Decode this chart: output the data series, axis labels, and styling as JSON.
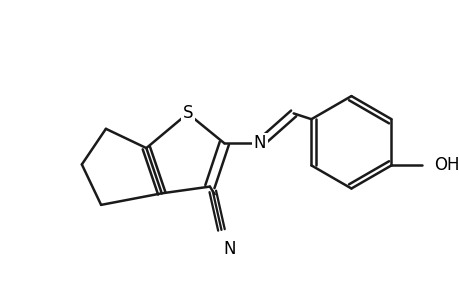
{
  "bg_color": "#ffffff",
  "bond_color": "#1a1a1a",
  "bond_width": 1.8,
  "text_color": "#000000",
  "font_size": 12,
  "font_family": "DejaVu Sans",
  "figsize": [
    4.6,
    3.0
  ],
  "dpi": 100,
  "xlim": [
    0,
    460
  ],
  "ylim": [
    0,
    300
  ]
}
